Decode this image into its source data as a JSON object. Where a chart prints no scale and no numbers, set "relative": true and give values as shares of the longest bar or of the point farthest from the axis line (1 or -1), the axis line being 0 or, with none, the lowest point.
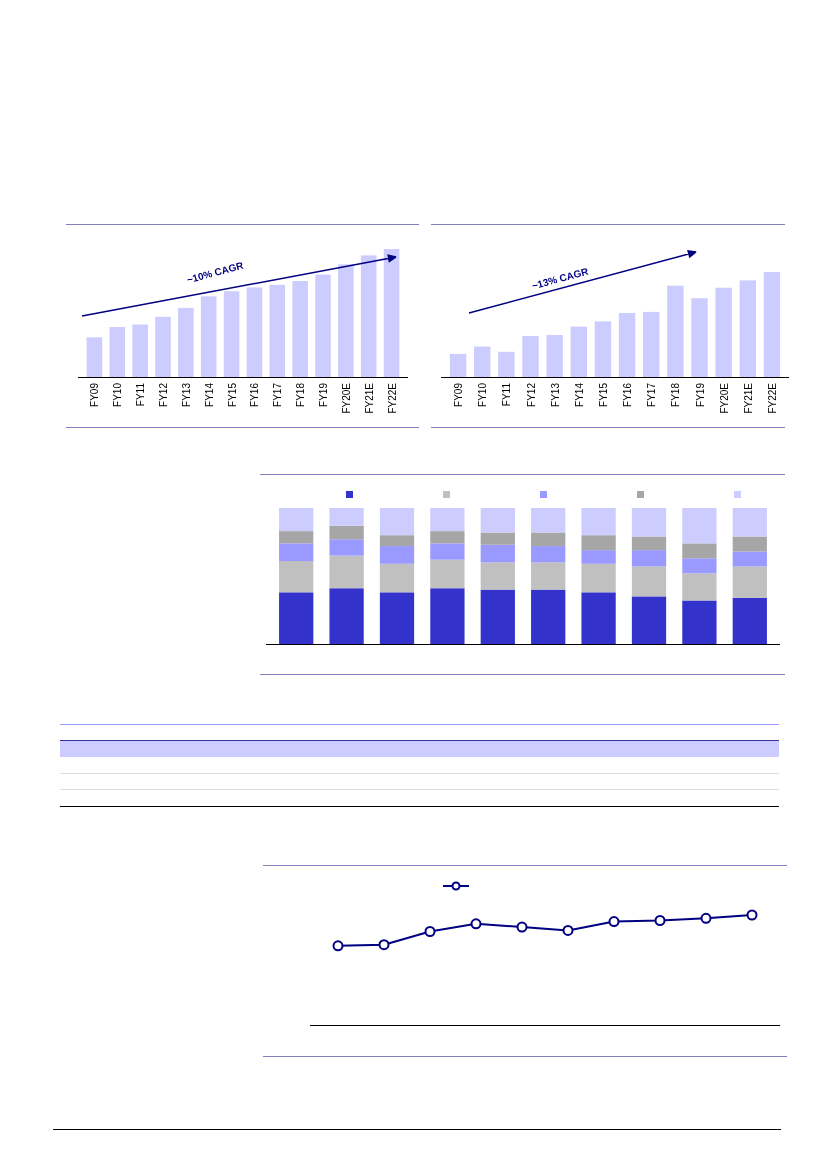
{
  "chart_data": [
    {
      "type": "bar",
      "relative": true,
      "categories": [
        "FY09",
        "FY10",
        "FY11",
        "FY12",
        "FY13",
        "FY14",
        "FY15",
        "FY16",
        "FY17",
        "FY18",
        "FY19",
        "FY20E",
        "FY21E",
        "FY22E"
      ],
      "values": [
        0.31,
        0.39,
        0.41,
        0.47,
        0.54,
        0.63,
        0.67,
        0.7,
        0.72,
        0.75,
        0.8,
        0.88,
        0.95,
        1
      ],
      "color": "#ccccff",
      "annotations": [
        "~10% CAGR"
      ]
    },
    {
      "type": "bar",
      "relative": true,
      "categories": [
        "FY09",
        "FY10",
        "FY11",
        "FY12",
        "FY13",
        "FY14",
        "FY15",
        "FY16",
        "FY17",
        "FY18",
        "FY19",
        "FY20E",
        "FY21E",
        "FY22E"
      ],
      "values": [
        0.22,
        0.29,
        0.24,
        0.39,
        0.4,
        0.48,
        0.53,
        0.61,
        0.62,
        0.87,
        0.75,
        0.85,
        0.92,
        1
      ],
      "color": "#ccccff",
      "annotations": [
        "~13% CAGR"
      ]
    },
    {
      "type": "bar",
      "relative": true,
      "stacked": true,
      "categories": [
        null,
        null,
        null,
        null,
        null,
        null,
        null,
        null,
        null,
        null
      ],
      "series": [
        {
          "color": "#3333cc",
          "values": [
            0.38,
            0.41,
            0.38,
            0.41,
            0.4,
            0.4,
            0.38,
            0.35,
            0.32,
            0.34
          ]
        },
        {
          "color": "#c0c0c0",
          "values": [
            0.23,
            0.24,
            0.21,
            0.21,
            0.2,
            0.2,
            0.21,
            0.22,
            0.2,
            0.23
          ]
        },
        {
          "color": "#9999ff",
          "values": [
            0.13,
            0.12,
            0.13,
            0.12,
            0.13,
            0.12,
            0.1,
            0.12,
            0.11,
            0.11
          ]
        },
        {
          "color": "#a6a6a6",
          "values": [
            0.09,
            0.1,
            0.08,
            0.09,
            0.09,
            0.1,
            0.11,
            0.1,
            0.11,
            0.11
          ]
        },
        {
          "color": "#ccccff",
          "values": [
            0.17,
            0.13,
            0.2,
            0.17,
            0.18,
            0.18,
            0.2,
            0.21,
            0.26,
            0.21
          ]
        }
      ]
    },
    {
      "type": "line",
      "relative": true,
      "marker": "circle",
      "categories": [
        null,
        null,
        null,
        null,
        null,
        null,
        null,
        null,
        null,
        null
      ],
      "series": [
        {
          "color": "#000080",
          "values": [
            0.72,
            0.73,
            0.85,
            0.92,
            0.89,
            0.86,
            0.94,
            0.95,
            0.97,
            1
          ]
        }
      ]
    }
  ]
}
